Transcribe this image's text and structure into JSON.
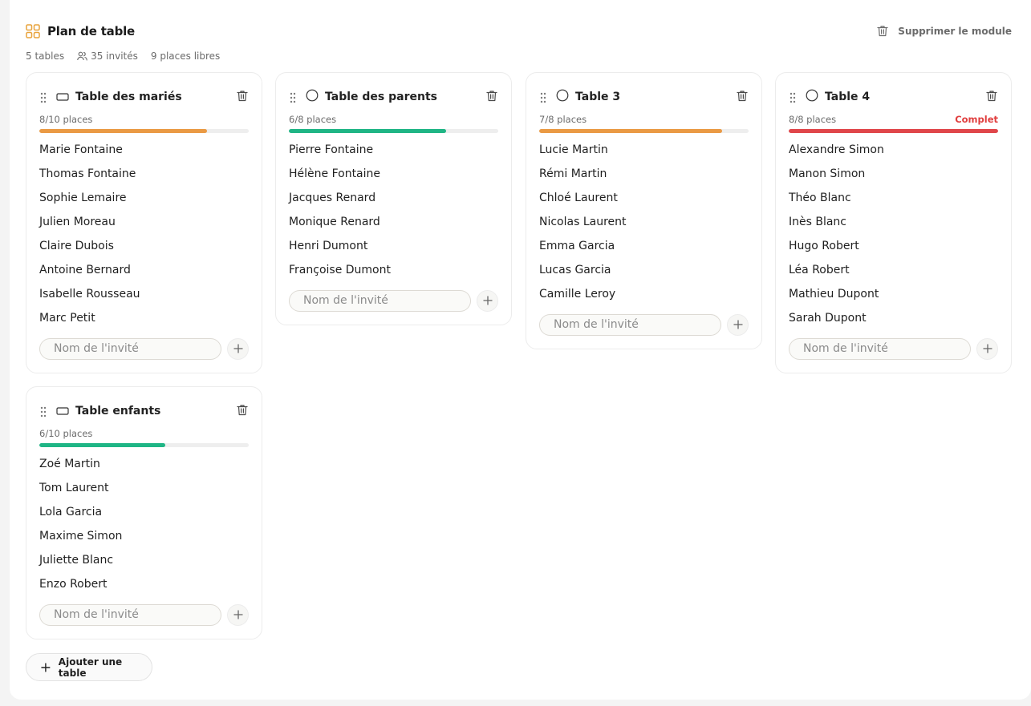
{
  "module": {
    "title": "Plan de table",
    "delete_label": "Supprimer le module",
    "stats": {
      "tables": "5 tables",
      "guests": "35 invités",
      "free": "9 places libres"
    },
    "add_table_label": "Ajouter une table",
    "accent_color": "#e8a33c"
  },
  "guest_placeholder": "Nom de l'invité",
  "tables": [
    {
      "name": "Table des mariés",
      "shape": "rectangle",
      "places": "8/10 places",
      "fill_fraction": 0.8,
      "bar_color": "#ea9a44",
      "guests": [
        "Marie Fontaine",
        "Thomas Fontaine",
        "Sophie Lemaire",
        "Julien Moreau",
        "Claire Dubois",
        "Antoine Bernard",
        "Isabelle Rousseau",
        "Marc Petit"
      ]
    },
    {
      "name": "Table des parents",
      "shape": "round",
      "places": "6/8 places",
      "fill_fraction": 0.75,
      "bar_color": "#1fb585",
      "guests": [
        "Pierre Fontaine",
        "Hélène Fontaine",
        "Jacques Renard",
        "Monique Renard",
        "Henri Dumont",
        "Françoise Dumont"
      ]
    },
    {
      "name": "Table 3",
      "shape": "round",
      "places": "7/8 places",
      "fill_fraction": 0.875,
      "bar_color": "#ea9a44",
      "guests": [
        "Lucie Martin",
        "Rémi Martin",
        "Chloé Laurent",
        "Nicolas Laurent",
        "Emma Garcia",
        "Lucas Garcia",
        "Camille Leroy"
      ]
    },
    {
      "name": "Table 4",
      "shape": "round",
      "places": "8/8 places",
      "status": "Complet",
      "fill_fraction": 1.0,
      "bar_color": "#e0464a",
      "guests": [
        "Alexandre Simon",
        "Manon Simon",
        "Théo Blanc",
        "Inès Blanc",
        "Hugo Robert",
        "Léa Robert",
        "Mathieu Dupont",
        "Sarah Dupont"
      ]
    },
    {
      "name": "Table enfants",
      "shape": "rectangle",
      "places": "6/10 places",
      "fill_fraction": 0.6,
      "bar_color": "#1fb585",
      "guests": [
        "Zoé Martin",
        "Tom Laurent",
        "Lola Garcia",
        "Maxime Simon",
        "Juliette Blanc",
        "Enzo Robert"
      ]
    }
  ]
}
